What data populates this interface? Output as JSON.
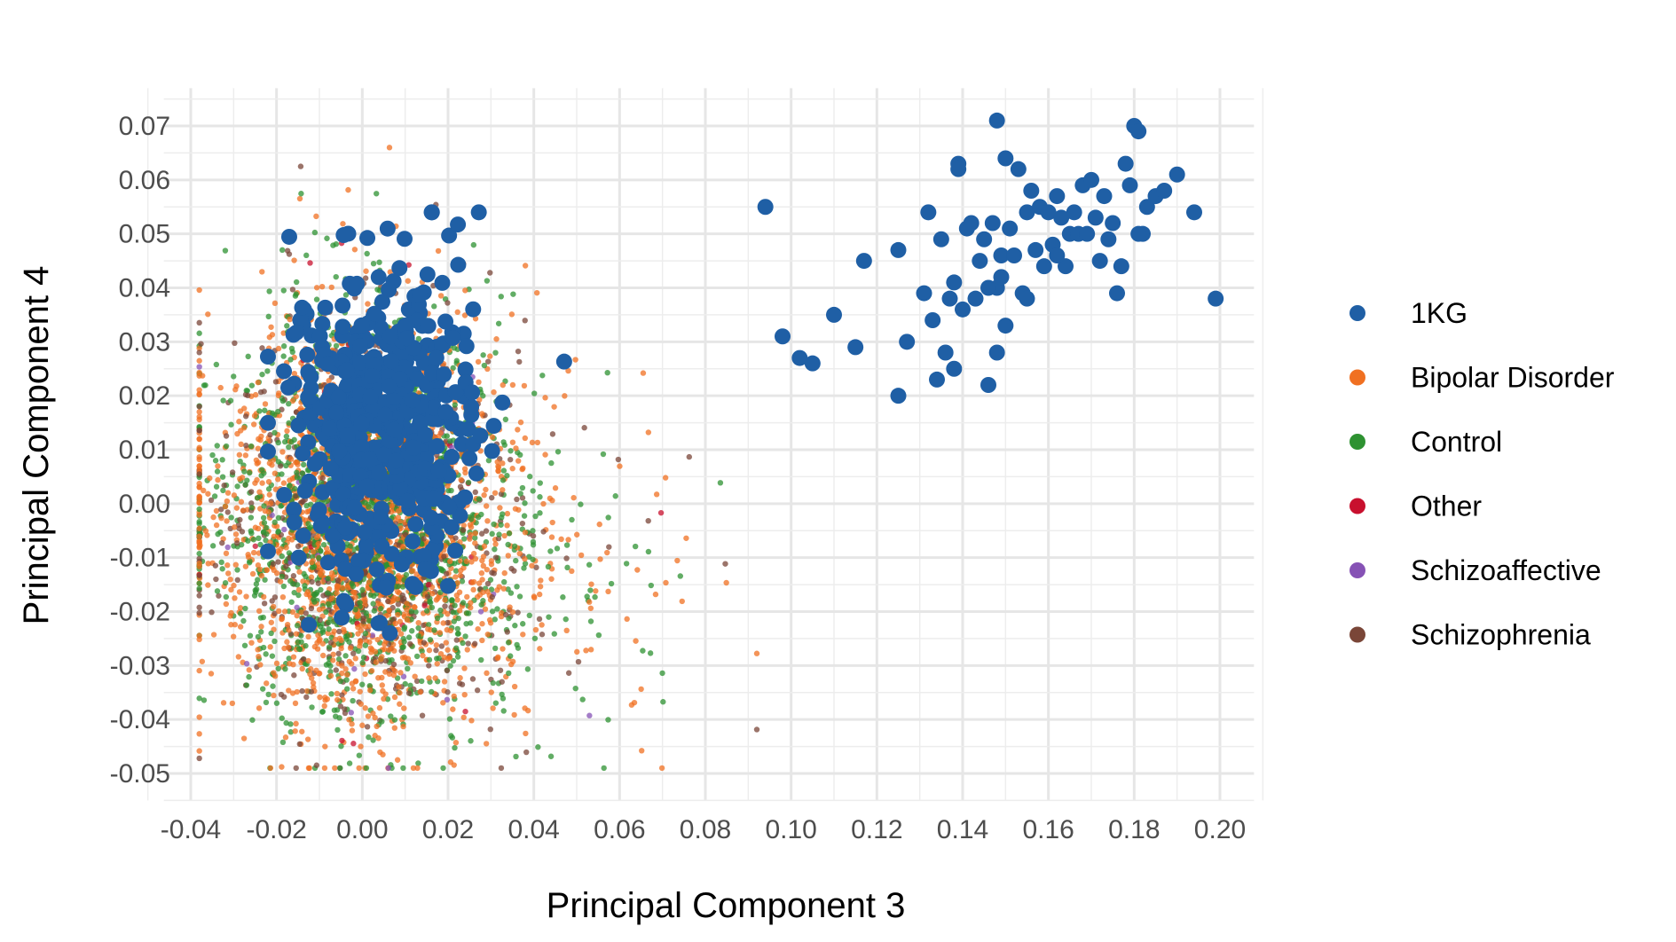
{
  "chart_data": {
    "type": "scatter",
    "xlabel": "Principal Component 3",
    "ylabel": "Principal Component 4",
    "xlim": [
      -0.05,
      0.21
    ],
    "ylim": [
      -0.055,
      0.077
    ],
    "x_ticks": [
      "-0.04",
      "-0.02",
      "0.00",
      "0.02",
      "0.04",
      "0.06",
      "0.08",
      "0.10",
      "0.12",
      "0.14",
      "0.16",
      "0.18",
      "0.20"
    ],
    "y_ticks": [
      "0.07",
      "0.06",
      "0.05",
      "0.04",
      "0.03",
      "0.02",
      "0.01",
      "0.00",
      "-0.01",
      "-0.02",
      "-0.03",
      "-0.04",
      "-0.05"
    ],
    "grid": true,
    "legend_position": "right",
    "series": [
      {
        "name": "1KG",
        "color": "#1f5fa5",
        "marker": "large",
        "x": [
          0.094,
          0.098,
          0.102,
          0.105,
          0.11,
          0.115,
          0.117,
          0.125,
          0.125,
          0.127,
          0.131,
          0.132,
          0.133,
          0.134,
          0.135,
          0.136,
          0.137,
          0.138,
          0.138,
          0.139,
          0.14,
          0.141,
          0.142,
          0.143,
          0.144,
          0.145,
          0.146,
          0.147,
          0.148,
          0.148,
          0.149,
          0.15,
          0.15,
          0.151,
          0.152,
          0.153,
          0.154,
          0.155,
          0.156,
          0.157,
          0.158,
          0.159,
          0.16,
          0.161,
          0.162,
          0.163,
          0.164,
          0.165,
          0.166,
          0.167,
          0.168,
          0.169,
          0.17,
          0.171,
          0.172,
          0.173,
          0.174,
          0.175,
          0.176,
          0.177,
          0.178,
          0.179,
          0.18,
          0.181,
          0.182,
          0.183,
          0.185,
          0.187,
          0.19,
          0.194,
          0.199,
          0.181,
          0.148,
          0.139,
          0.146,
          0.149,
          0.155,
          0.162
        ],
        "y": [
          0.055,
          0.031,
          0.027,
          0.026,
          0.035,
          0.029,
          0.045,
          0.02,
          0.047,
          0.03,
          0.039,
          0.054,
          0.034,
          0.023,
          0.049,
          0.028,
          0.038,
          0.025,
          0.041,
          0.063,
          0.036,
          0.051,
          0.052,
          0.038,
          0.045,
          0.049,
          0.022,
          0.052,
          0.071,
          0.04,
          0.046,
          0.064,
          0.033,
          0.051,
          0.046,
          0.062,
          0.039,
          0.054,
          0.058,
          0.047,
          0.055,
          0.044,
          0.054,
          0.048,
          0.057,
          0.053,
          0.044,
          0.05,
          0.054,
          0.05,
          0.059,
          0.05,
          0.06,
          0.053,
          0.045,
          0.057,
          0.049,
          0.052,
          0.039,
          0.044,
          0.063,
          0.059,
          0.07,
          0.069,
          0.05,
          0.055,
          0.057,
          0.058,
          0.061,
          0.054,
          0.038,
          0.05,
          0.028,
          0.062,
          0.04,
          0.042,
          0.038,
          0.046
        ]
      },
      {
        "name": "Bipolar Disorder",
        "color": "#f07021",
        "marker": "small",
        "x": [],
        "y": []
      },
      {
        "name": "Control",
        "color": "#2e9231",
        "marker": "small",
        "x": [],
        "y": []
      },
      {
        "name": "Other",
        "color": "#c8102e",
        "marker": "small",
        "x": [],
        "y": []
      },
      {
        "name": "Schizoaffective",
        "color": "#8652b5",
        "marker": "small",
        "x": [],
        "y": []
      },
      {
        "name": "Schizophrenia",
        "color": "#7a4638",
        "marker": "small",
        "x": [],
        "y": []
      }
    ],
    "cluster_main": {
      "center_x": 0.002,
      "center_y": -0.002,
      "spread_x": 0.018,
      "spread_y": 0.02,
      "x_extent": [
        -0.038,
        0.092
      ],
      "y_extent": [
        -0.049,
        0.066
      ],
      "kg_center_x": 0.005,
      "kg_center_y": 0.015
    }
  }
}
